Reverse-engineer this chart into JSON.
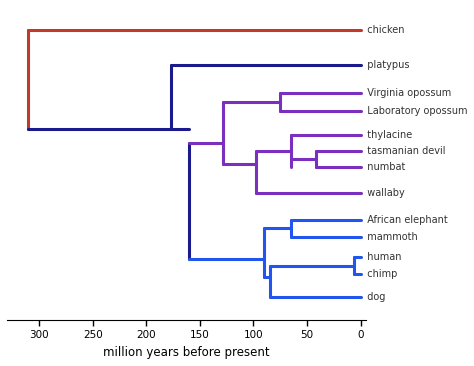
{
  "xlabel": "million years before present",
  "taxa": [
    "chicken",
    "platypus",
    "Virginia opossum",
    "Laboratory opossum",
    "thylacine",
    "tasmanian devil",
    "numbat",
    "wallaby",
    "African elephant",
    "mammoth",
    "human",
    "chimp",
    "dog"
  ],
  "y_positions": [
    12,
    10.5,
    9.3,
    8.5,
    7.5,
    6.8,
    6.1,
    5.0,
    3.8,
    3.1,
    2.2,
    1.5,
    0.5
  ],
  "colors": {
    "chicken_line": "#c0392b",
    "platypus_line": "#1a1a8c",
    "marsupial_line": "#7b2fbe",
    "placental_line": "#2255dd",
    "root_stem": "#c0392b",
    "mammal_stem": "#1a1a8c",
    "therian_stem": "#3a1a9c"
  },
  "times": {
    "root": 310,
    "mammal_root": 177,
    "therian_root": 160,
    "marsupial_root": 128,
    "opossum_split": 75,
    "aus_split": 98,
    "dasyuro_split": 65,
    "devil_numbat_split": 42,
    "placental_root": 90,
    "afrotheria_split": 65,
    "boreoeuth_split": 85,
    "human_chimp_split": 6
  },
  "lw": 2.2
}
